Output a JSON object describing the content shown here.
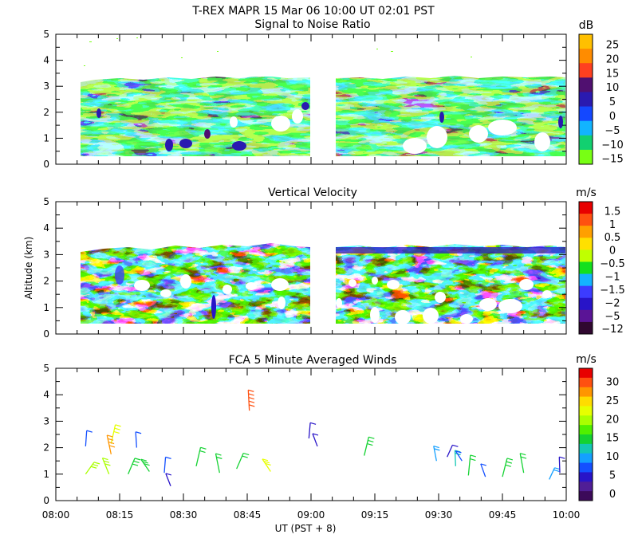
{
  "header": {
    "title": "T-REX   MAPR 15 Mar 06   10:00 UT   02:01   PST"
  },
  "chart_data": [
    {
      "type": "heatmap",
      "title": "Signal to Noise Ratio",
      "ylabel": "",
      "ylim": [
        0,
        5
      ],
      "yticks": [
        "0",
        "1",
        "2",
        "3",
        "4",
        "5"
      ],
      "colorbar": {
        "unit": "dB",
        "labels": [
          "25",
          "20",
          "15",
          "10",
          "5",
          "0",
          "−5",
          "−10",
          "−15"
        ],
        "colors": [
          "#ffc000",
          "#ff8c00",
          "#ff4020",
          "#501070",
          "#2a1ab0",
          "#1448ff",
          "#12b4ff",
          "#12d070",
          "#78ff14"
        ]
      },
      "data_gap_time": [
        "09:00",
        "09:05"
      ],
      "coverage_top_km": 3.2,
      "coverage_bottom_km": 0.35
    },
    {
      "type": "heatmap",
      "title": "Vertical Velocity",
      "ylabel": "Altitude (km)",
      "ylim": [
        0,
        5
      ],
      "yticks": [
        "0",
        "1",
        "2",
        "3",
        "4",
        "5"
      ],
      "colorbar": {
        "unit": "m/s",
        "labels": [
          "1.5",
          "1",
          "0.5",
          "0",
          "−0.5",
          "−1",
          "−1.5",
          "−2",
          "−5",
          "−12"
        ],
        "colors": [
          "#e80000",
          "#ff5010",
          "#ffa000",
          "#ffe000",
          "#c0ff00",
          "#14e01e",
          "#14b4ff",
          "#3c3cff",
          "#2814c8",
          "#5a1496",
          "#300830"
        ]
      },
      "data_gap_time": [
        "09:00",
        "09:05"
      ],
      "coverage_top_km": 3.2,
      "coverage_bottom_km": 0.35
    },
    {
      "type": "scatter",
      "title": "FCA 5 Minute Averaged Winds",
      "xlabel": "UT  (PST + 8)",
      "ylabel": "",
      "ylim": [
        0,
        5
      ],
      "yticks": [
        "0",
        "1",
        "2",
        "3",
        "4",
        "5"
      ],
      "xticks": [
        "08:00",
        "08:15",
        "08:30",
        "08:45",
        "09:00",
        "09:15",
        "09:30",
        "09:45",
        "10:00"
      ],
      "colorbar": {
        "unit": "m/s",
        "labels": [
          "30",
          "25",
          "20",
          "15",
          "10",
          "5",
          "0"
        ],
        "colors": [
          "#e80000",
          "#ff5010",
          "#ff9600",
          "#ffdc00",
          "#e6ff00",
          "#aaff00",
          "#50f000",
          "#14d232",
          "#14c8b4",
          "#14a0ff",
          "#1450ff",
          "#2814c8",
          "#501e96",
          "#3c0a5a"
        ]
      },
      "wind_barbs": [
        {
          "time_min": 7,
          "alt_km": 1.0,
          "speed": 18
        },
        {
          "time_min": 7,
          "alt_km": 2.05,
          "speed": 6
        },
        {
          "time_min": 12.5,
          "alt_km": 1.0,
          "speed": 18
        },
        {
          "time_min": 13,
          "alt_km": 2.15,
          "speed": 20
        },
        {
          "time_min": 13,
          "alt_km": 1.75,
          "speed": 25
        },
        {
          "time_min": 17,
          "alt_km": 1.0,
          "speed": 15
        },
        {
          "time_min": 19,
          "alt_km": 2.0,
          "speed": 6
        },
        {
          "time_min": 22,
          "alt_km": 1.1,
          "speed": 15
        },
        {
          "time_min": 25.5,
          "alt_km": 1.05,
          "speed": 6
        },
        {
          "time_min": 27,
          "alt_km": 0.55,
          "speed": 4
        },
        {
          "time_min": 33,
          "alt_km": 1.3,
          "speed": 14
        },
        {
          "time_min": 38.5,
          "alt_km": 1.05,
          "speed": 14
        },
        {
          "time_min": 42.5,
          "alt_km": 1.2,
          "speed": 14
        },
        {
          "time_min": 45.5,
          "alt_km": 3.4,
          "speed": 28
        },
        {
          "time_min": 50.5,
          "alt_km": 1.1,
          "speed": 20
        },
        {
          "time_min": 59.5,
          "alt_km": 2.35,
          "speed": 5
        },
        {
          "time_min": 61.5,
          "alt_km": 2.05,
          "speed": 5
        },
        {
          "time_min": 72.5,
          "alt_km": 1.7,
          "speed": 15
        },
        {
          "time_min": 89.5,
          "alt_km": 1.5,
          "speed": 10
        },
        {
          "time_min": 92,
          "alt_km": 1.65,
          "speed": 5
        },
        {
          "time_min": 94,
          "alt_km": 1.3,
          "speed": 12
        },
        {
          "time_min": 95.5,
          "alt_km": 1.5,
          "speed": 6
        },
        {
          "time_min": 97,
          "alt_km": 0.95,
          "speed": 13
        },
        {
          "time_min": 101,
          "alt_km": 0.9,
          "speed": 6
        },
        {
          "time_min": 105,
          "alt_km": 0.9,
          "speed": 15
        },
        {
          "time_min": 110,
          "alt_km": 1.05,
          "speed": 14
        },
        {
          "time_min": 116,
          "alt_km": 0.8,
          "speed": 9
        },
        {
          "time_min": 118.5,
          "alt_km": 1.05,
          "speed": 5
        }
      ]
    }
  ]
}
